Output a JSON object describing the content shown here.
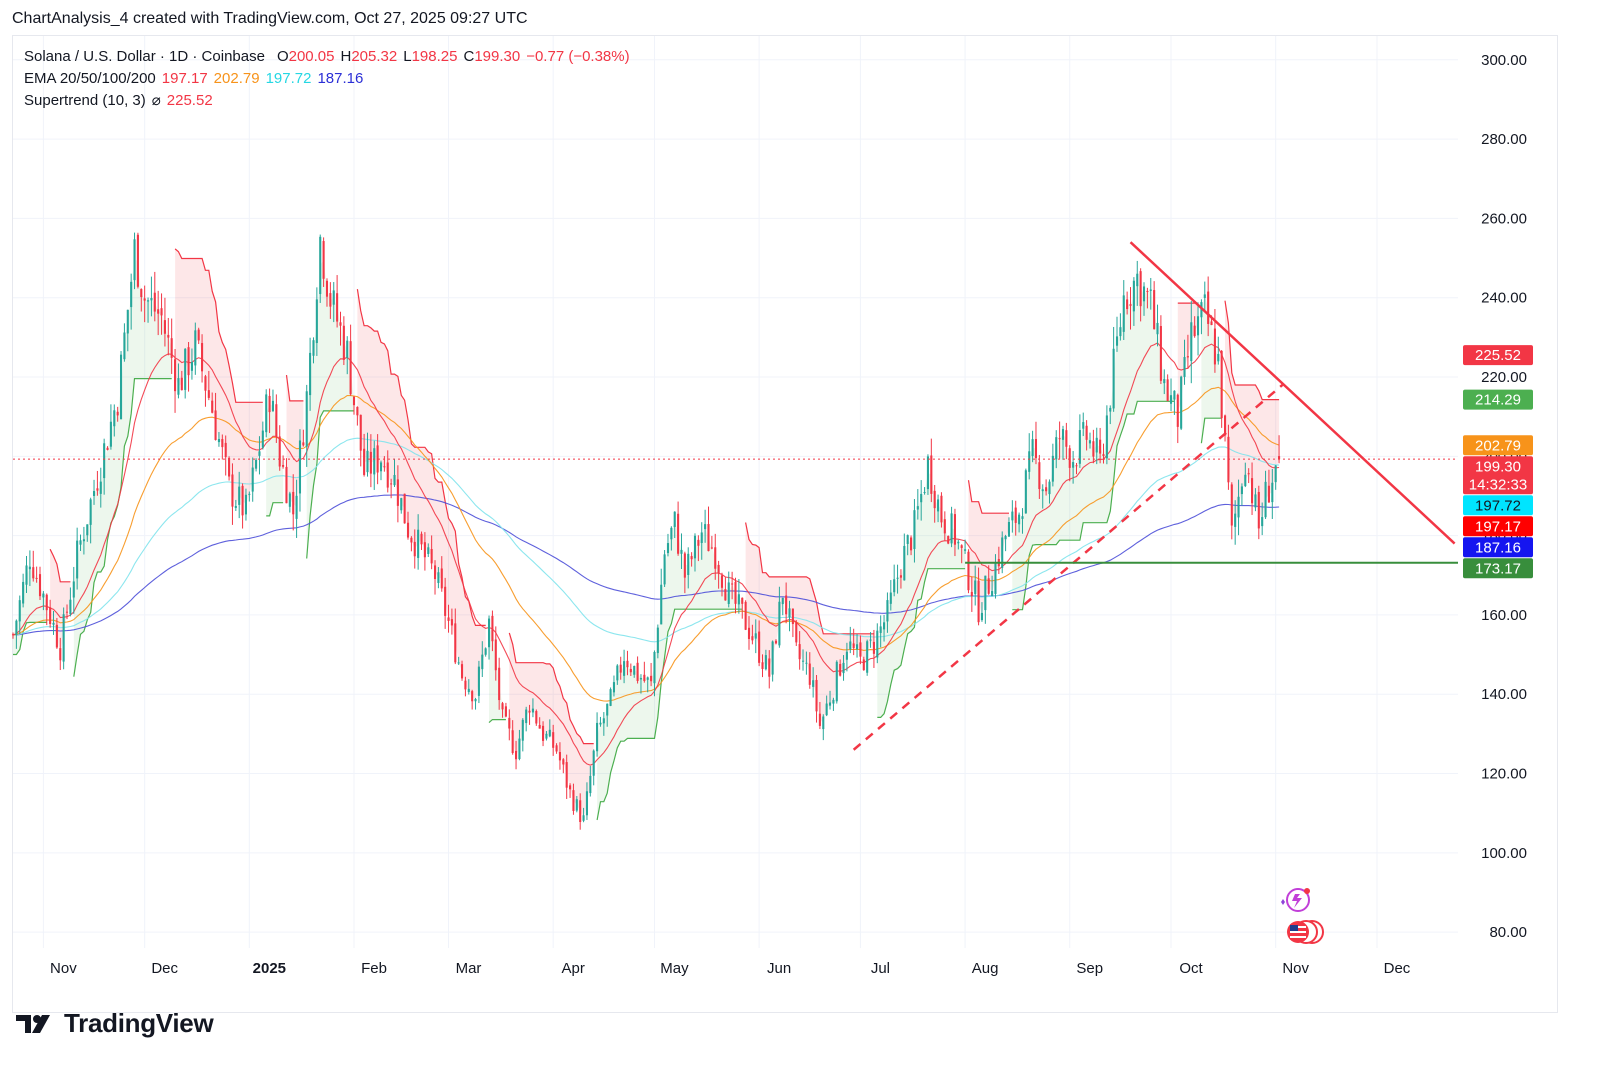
{
  "header": {
    "attribution": "ChartAnalysis_4 created with TradingView.com, Oct 27, 2025 09:27 UTC"
  },
  "legend": {
    "symbol": "Solana / U.S. Dollar · 1D · Coinbase",
    "open_label": "O",
    "open": "200.05",
    "high_label": "H",
    "high": "205.32",
    "low_label": "L",
    "low": "198.25",
    "close_label": "C",
    "close": "199.30",
    "change": "−0.77 (−0.38%)",
    "ema_label": "EMA 20/50/100/200",
    "ema20": "197.17",
    "ema50": "202.79",
    "ema100": "197.72",
    "ema200": "187.16",
    "supertrend_label": "Supertrend (10, 3)",
    "supertrend_symbol": "⌀",
    "supertrend_value": "225.52"
  },
  "footer": {
    "brand": "TradingView"
  },
  "colors": {
    "up": "#26a69a",
    "down": "#f23645",
    "ema20": "#f23645",
    "ema50": "#f7931a",
    "ema100": "#7fe3ec",
    "ema200": "#4c4fd8",
    "st_up": "#4caf50",
    "st_down": "#f23645",
    "st_fill_up": "rgba(76,175,80,0.10)",
    "st_fill_down": "rgba(242,54,69,0.12)",
    "trendline": "#f23645",
    "support": "#388e3c"
  },
  "chart_data": {
    "type": "candlestick",
    "symbol": "SOL/USD",
    "timeframe": "1D",
    "exchange": "Coinbase",
    "ylim": [
      76,
      306
    ],
    "y_ticks": [
      80,
      100,
      120,
      140,
      160,
      180,
      200,
      220,
      240,
      260,
      280,
      300
    ],
    "y_tick_labels": [
      "80.00",
      "100.00",
      "120.00",
      "140.00",
      "160.00",
      "180.00",
      "200.00",
      "220.00",
      "240.00",
      "260.00",
      "280.00",
      "300.00"
    ],
    "x_ticks": [
      {
        "label": "Nov",
        "day": 0
      },
      {
        "label": "Dec",
        "day": 30
      },
      {
        "label": "2025",
        "day": 61,
        "bold": true
      },
      {
        "label": "Feb",
        "day": 92
      },
      {
        "label": "Mar",
        "day": 120
      },
      {
        "label": "Apr",
        "day": 151
      },
      {
        "label": "May",
        "day": 181
      },
      {
        "label": "Jun",
        "day": 212
      },
      {
        "label": "Jul",
        "day": 242
      },
      {
        "label": "Aug",
        "day": 273
      },
      {
        "label": "Sep",
        "day": 304
      },
      {
        "label": "Oct",
        "day": 334
      },
      {
        "label": "Nov",
        "day": 365
      },
      {
        "label": "Dec",
        "day": 395
      }
    ],
    "day_range": [
      -9,
      419
    ],
    "price_anchors": [
      [
        -9,
        155
      ],
      [
        -4,
        175
      ],
      [
        0,
        165
      ],
      [
        5,
        152
      ],
      [
        10,
        175
      ],
      [
        16,
        195
      ],
      [
        22,
        215
      ],
      [
        27,
        252
      ],
      [
        30,
        240
      ],
      [
        35,
        235
      ],
      [
        40,
        218
      ],
      [
        45,
        228
      ],
      [
        50,
        212
      ],
      [
        55,
        192
      ],
      [
        60,
        186
      ],
      [
        63,
        198
      ],
      [
        67,
        216
      ],
      [
        70,
        200
      ],
      [
        74,
        186
      ],
      [
        78,
        215
      ],
      [
        82,
        255
      ],
      [
        85,
        240
      ],
      [
        90,
        226
      ],
      [
        95,
        196
      ],
      [
        100,
        200
      ],
      [
        104,
        194
      ],
      [
        108,
        182
      ],
      [
        112,
        176
      ],
      [
        116,
        170
      ],
      [
        120,
        158
      ],
      [
        124,
        145
      ],
      [
        128,
        140
      ],
      [
        132,
        158
      ],
      [
        136,
        133
      ],
      [
        140,
        126
      ],
      [
        144,
        138
      ],
      [
        148,
        130
      ],
      [
        152,
        126
      ],
      [
        156,
        115
      ],
      [
        160,
        108
      ],
      [
        164,
        130
      ],
      [
        168,
        138
      ],
      [
        172,
        150
      ],
      [
        176,
        145
      ],
      [
        180,
        142
      ],
      [
        184,
        176
      ],
      [
        187,
        183
      ],
      [
        190,
        170
      ],
      [
        195,
        181
      ],
      [
        199,
        176
      ],
      [
        203,
        165
      ],
      [
        207,
        160
      ],
      [
        211,
        153
      ],
      [
        215,
        145
      ],
      [
        219,
        166
      ],
      [
        223,
        150
      ],
      [
        227,
        145
      ],
      [
        230,
        132
      ],
      [
        234,
        142
      ],
      [
        238,
        153
      ],
      [
        242,
        148
      ],
      [
        246,
        153
      ],
      [
        250,
        160
      ],
      [
        254,
        173
      ],
      [
        258,
        182
      ],
      [
        262,
        198
      ],
      [
        266,
        185
      ],
      [
        270,
        180
      ],
      [
        274,
        170
      ],
      [
        277,
        162
      ],
      [
        281,
        170
      ],
      [
        285,
        180
      ],
      [
        289,
        186
      ],
      [
        293,
        200
      ],
      [
        297,
        192
      ],
      [
        301,
        205
      ],
      [
        305,
        200
      ],
      [
        309,
        205
      ],
      [
        313,
        198
      ],
      [
        317,
        222
      ],
      [
        320,
        240
      ],
      [
        324,
        245
      ],
      [
        328,
        238
      ],
      [
        332,
        218
      ],
      [
        336,
        210
      ],
      [
        340,
        230
      ],
      [
        344,
        236
      ],
      [
        348,
        224
      ],
      [
        352,
        180
      ],
      [
        356,
        200
      ],
      [
        360,
        182
      ],
      [
        362,
        190
      ],
      [
        366,
        199.3
      ]
    ],
    "ohlc_last": {
      "open": 200.05,
      "high": 205.32,
      "low": 198.25,
      "close": 199.3,
      "change": -0.77,
      "change_pct": -0.38
    },
    "indicators": {
      "ema": [
        {
          "name": "EMA 20",
          "period": 20,
          "value": 197.17
        },
        {
          "name": "EMA 50",
          "period": 50,
          "value": 202.79
        },
        {
          "name": "EMA 100",
          "period": 100,
          "value": 197.72
        },
        {
          "name": "EMA 200",
          "period": 200,
          "value": 187.16
        }
      ],
      "supertrend": {
        "name": "Supertrend (10, 3)",
        "value": 225.52
      }
    },
    "drawings": {
      "descending_trendline": [
        {
          "day": 322,
          "price": 254
        },
        {
          "day": 418,
          "price": 178
        }
      ],
      "ascending_trendline_dashed": [
        {
          "day": 240,
          "price": 126
        },
        {
          "day": 367,
          "price": 218
        }
      ],
      "support_line": {
        "price": 173.17,
        "from_day": 273,
        "to_day": 419
      }
    },
    "price_labels": [
      {
        "value": "225.52",
        "price": 225.52,
        "bg": "#f23645",
        "fg": "#ffffff"
      },
      {
        "value": "214.29",
        "price": 214.29,
        "bg": "#4caf50",
        "fg": "#ffffff"
      },
      {
        "value": "202.79",
        "price": 202.79,
        "bg": "#f7931a",
        "fg": "#ffffff"
      },
      {
        "value": "199.30",
        "price": 199.3,
        "bg": "#f23645",
        "fg": "#ffffff",
        "sub": "14:32:33"
      },
      {
        "value": "197.72",
        "price": 197.72,
        "bg": "#00e5ff",
        "fg": "#131722"
      },
      {
        "value": "197.17",
        "price": 197.17,
        "bg": "#ff0000",
        "fg": "#ffffff"
      },
      {
        "value": "187.16",
        "price": 187.16,
        "bg": "#1515f0",
        "fg": "#ffffff"
      },
      {
        "value": "173.17",
        "price": 173.17,
        "bg": "#388e3c",
        "fg": "#ffffff"
      }
    ]
  }
}
